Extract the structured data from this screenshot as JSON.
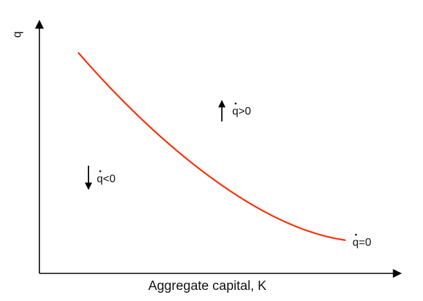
{
  "axes": {
    "y_label": "q",
    "x_label": "Aggregate capital, K"
  },
  "regions": {
    "above": {
      "label": "q>0",
      "arrow": "up"
    },
    "below": {
      "label": "q<0",
      "arrow": "down"
    }
  },
  "curve": {
    "label": "q=0",
    "color": "#ff2a00"
  },
  "axis_color": "#000000"
}
